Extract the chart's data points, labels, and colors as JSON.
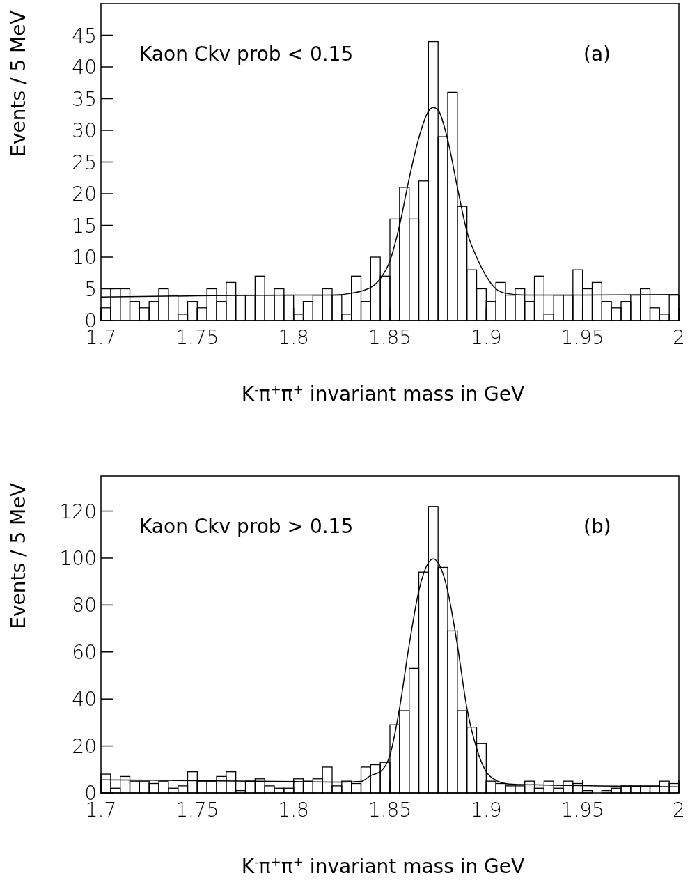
{
  "chart_data": [
    {
      "type": "histogram",
      "xlabel": "K$^{-}$π$^{+}$π$^{+}$ invariant mass in GeV",
      "ylabel": "Events / 5 MeV",
      "annotations": [
        "Kaon Ckv prob < 0.15",
        "(a)"
      ],
      "color": "#000000",
      "bins": [
        1.7,
        1.705,
        1.71,
        1.715,
        1.72,
        1.725,
        1.73,
        1.735,
        1.74,
        1.745,
        1.75,
        1.755,
        1.76,
        1.765,
        1.77,
        1.775,
        1.78,
        1.785,
        1.79,
        1.795,
        1.8,
        1.805,
        1.81,
        1.815,
        1.82,
        1.825,
        1.83,
        1.835,
        1.84,
        1.845,
        1.85,
        1.855,
        1.86,
        1.865,
        1.87,
        1.875,
        1.88,
        1.885,
        1.89,
        1.895,
        1.9,
        1.905,
        1.91,
        1.915,
        1.92,
        1.925,
        1.93,
        1.935,
        1.94,
        1.945,
        1.95,
        1.955,
        1.96,
        1.965,
        1.97,
        1.975,
        1.98,
        1.985,
        1.99,
        1.995,
        2.0
      ],
      "values": [
        2,
        5,
        5,
        3,
        2,
        3,
        5,
        4,
        1,
        3,
        2,
        5,
        3,
        6,
        4,
        4,
        7,
        4,
        5,
        4,
        1,
        3,
        4,
        5,
        4,
        1,
        7,
        3,
        10,
        7,
        16,
        21,
        16,
        22,
        44,
        29,
        36,
        18,
        8,
        5,
        3,
        6,
        4,
        5,
        3,
        7,
        1,
        4,
        4,
        8,
        5,
        6,
        3,
        2,
        3,
        4,
        5,
        2,
        1,
        4
      ],
      "series": [
        {
          "type": "line",
          "color": "#000000",
          "x": [
            1.7,
            1.75,
            1.8,
            1.82,
            1.83,
            1.84,
            1.845,
            1.85,
            1.855,
            1.86,
            1.865,
            1.87,
            1.8725,
            1.875,
            1.88,
            1.885,
            1.89,
            1.895,
            1.9,
            1.905,
            1.91,
            1.92,
            1.95,
            2.0
          ],
          "values": [
            3.7,
            3.9,
            4.0,
            4.0,
            4.3,
            5.2,
            6.6,
            9.4,
            15,
            22.4,
            28.8,
            33,
            33.6,
            33.2,
            28.5,
            21,
            14,
            10,
            7,
            5,
            4.3,
            4.0,
            4.0,
            4.1
          ]
        }
      ],
      "xlim": [
        1.7,
        2.0
      ],
      "xticks": [
        1.7,
        1.75,
        1.8,
        1.85,
        1.9,
        1.95,
        2
      ],
      "ylim": [
        0,
        50
      ],
      "yticks": [
        0,
        5,
        10,
        15,
        20,
        25,
        30,
        35,
        40,
        45
      ],
      "grid": false
    },
    {
      "type": "histogram",
      "xlabel": "K$^{-}$π$^{+}$π$^{+}$ invariant mass in GeV",
      "ylabel": "Events / 5 MeV",
      "annotations": [
        "Kaon Ckv prob > 0.15",
        "(b)"
      ],
      "color": "#000000",
      "bins": [
        1.7,
        1.705,
        1.71,
        1.715,
        1.72,
        1.725,
        1.73,
        1.735,
        1.74,
        1.745,
        1.75,
        1.755,
        1.76,
        1.765,
        1.77,
        1.775,
        1.78,
        1.785,
        1.79,
        1.795,
        1.8,
        1.805,
        1.81,
        1.815,
        1.82,
        1.825,
        1.83,
        1.835,
        1.84,
        1.845,
        1.85,
        1.855,
        1.86,
        1.865,
        1.87,
        1.875,
        1.88,
        1.885,
        1.89,
        1.895,
        1.9,
        1.905,
        1.91,
        1.915,
        1.92,
        1.925,
        1.93,
        1.935,
        1.94,
        1.945,
        1.95,
        1.955,
        1.96,
        1.965,
        1.97,
        1.975,
        1.98,
        1.985,
        1.99,
        1.995,
        2.0
      ],
      "values": [
        8,
        2,
        7,
        5,
        5,
        4,
        5,
        2,
        3,
        9,
        5,
        5,
        7,
        9,
        1,
        5,
        6,
        3,
        2,
        2,
        6,
        5,
        6,
        11,
        3,
        5,
        4,
        11,
        12,
        13,
        29,
        35,
        53,
        94,
        122,
        96,
        69,
        35,
        28,
        21,
        5,
        4,
        3,
        3,
        5,
        2,
        5,
        2,
        5,
        4,
        1,
        0,
        1,
        2,
        3,
        3,
        3,
        3,
        5,
        4
      ],
      "series": [
        {
          "type": "line",
          "color": "#000000",
          "x": [
            1.7,
            1.75,
            1.8,
            1.82,
            1.83,
            1.835,
            1.84,
            1.845,
            1.85,
            1.855,
            1.86,
            1.865,
            1.8725,
            1.875,
            1.88,
            1.885,
            1.89,
            1.895,
            1.9,
            1.905,
            1.91,
            1.915,
            1.92,
            1.95,
            1.975,
            2.0
          ],
          "values": [
            5.6,
            5.2,
            4.8,
            4.6,
            4.7,
            4.9,
            7.4,
            9,
            16,
            36,
            63,
            86,
            99.6,
            98,
            86,
            63,
            36,
            19,
            9,
            5.4,
            4,
            3.6,
            3.5,
            3.1,
            2.8,
            2.6
          ]
        }
      ],
      "xlim": [
        1.7,
        2.0
      ],
      "xticks": [
        1.7,
        1.75,
        1.8,
        1.85,
        1.9,
        1.95,
        2
      ],
      "ylim": [
        0,
        135
      ],
      "yticks": [
        0,
        20,
        40,
        60,
        80,
        100,
        120
      ],
      "grid": false
    }
  ]
}
